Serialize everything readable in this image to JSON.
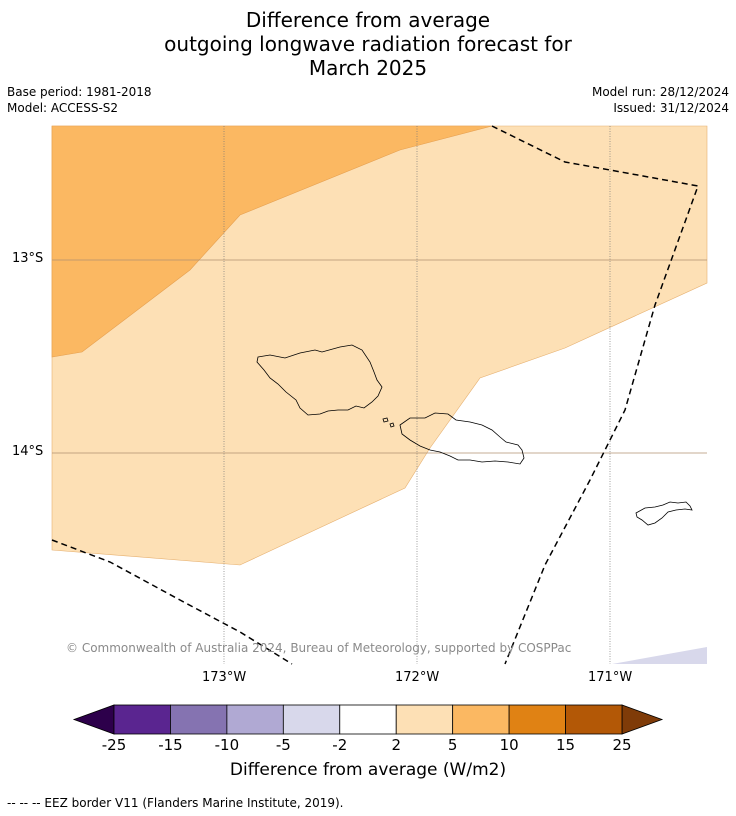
{
  "title_lines": [
    "Difference from average",
    "outgoing longwave radiation forecast for",
    "March 2025"
  ],
  "meta": {
    "base_period": "Base period: 1981-2018",
    "model": "Model: ACCESS-S2",
    "model_run": "Model run: 28/12/2024",
    "issued": "Issued: 31/12/2024"
  },
  "map": {
    "lat_labels": [
      "13°S",
      "14°S"
    ],
    "lon_labels": [
      "173°W",
      "172°W",
      "171°W"
    ],
    "copyright": "© Commonwealth of Australia 2024, Bureau of Meteorology, supported by COSPPac",
    "colors": {
      "light_orange": "#fde0b5",
      "mid_orange": "#fbb862",
      "lavender": "#d8d8eb",
      "white": "#ffffff"
    }
  },
  "colorbar": {
    "label": "Difference from average (W/m2)",
    "ticks": [
      "-25",
      "-15",
      "-10",
      "-5",
      "-2",
      "2",
      "5",
      "10",
      "15",
      "25"
    ],
    "colors": [
      "#5a2590",
      "#8573b1",
      "#b0a9d3",
      "#d8d8eb",
      "#ffffff",
      "#fde0b5",
      "#fbb862",
      "#e08214",
      "#b35806"
    ],
    "low_color": "#2d004b",
    "high_color": "#7f3b08"
  },
  "footnote": "--  --  -- EEZ border V11 (Flanders Marine Institute, 2019)."
}
